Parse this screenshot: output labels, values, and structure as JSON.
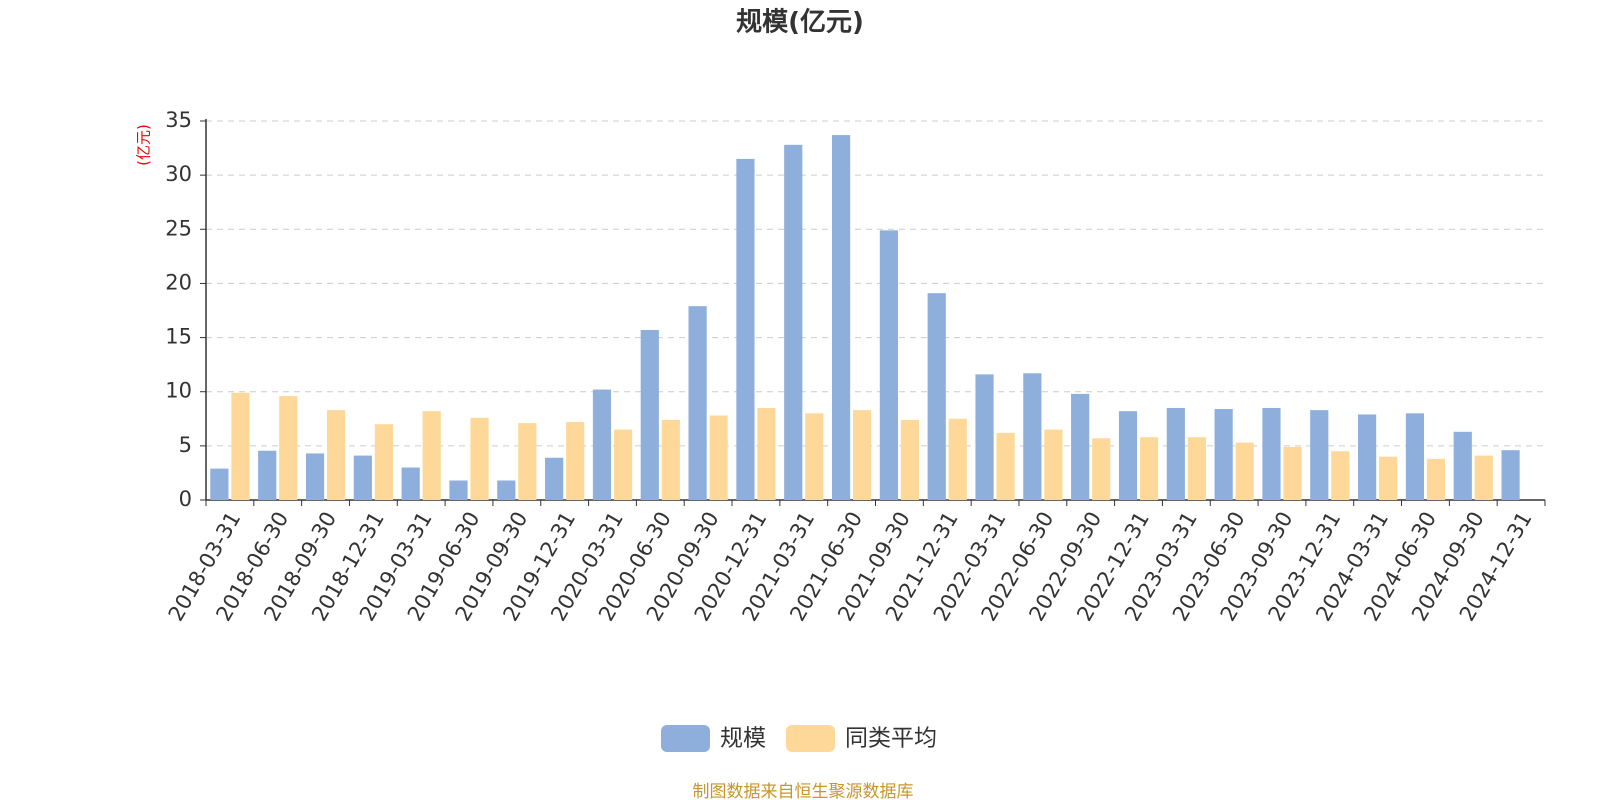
{
  "chart_data": {
    "type": "bar",
    "title": "规模(亿元)",
    "y_label": "(亿元)",
    "source": "制图数据来自恒生聚源数据库",
    "categories": [
      "2018-03-31",
      "2018-06-30",
      "2018-09-30",
      "2018-12-31",
      "2019-03-31",
      "2019-06-30",
      "2019-09-30",
      "2019-12-31",
      "2020-03-31",
      "2020-06-30",
      "2020-09-30",
      "2020-12-31",
      "2021-03-31",
      "2021-06-30",
      "2021-09-30",
      "2021-12-31",
      "2022-03-31",
      "2022-06-30",
      "2022-09-30",
      "2022-12-31",
      "2023-03-31",
      "2023-06-30",
      "2023-09-30",
      "2023-12-31",
      "2024-03-31",
      "2024-06-30",
      "2024-09-30",
      "2024-12-31"
    ],
    "series": [
      {
        "name": "规模",
        "color": "#8eaedb",
        "values": [
          2.9,
          4.55,
          4.3,
          4.1,
          3.0,
          1.8,
          1.8,
          3.9,
          10.2,
          15.7,
          17.9,
          31.5,
          32.8,
          33.7,
          24.9,
          19.1,
          11.6,
          11.7,
          9.8,
          8.2,
          8.5,
          8.4,
          8.5,
          8.3,
          7.9,
          8.0,
          6.3,
          4.6
        ]
      },
      {
        "name": "同类平均",
        "color": "#fdd898",
        "values": [
          9.9,
          9.6,
          8.3,
          7.0,
          8.2,
          7.6,
          7.1,
          7.2,
          6.5,
          7.4,
          7.8,
          8.5,
          8.0,
          8.3,
          7.4,
          7.5,
          6.2,
          6.5,
          5.7,
          5.8,
          5.8,
          5.3,
          4.9,
          4.5,
          4.0,
          3.8,
          4.1,
          null
        ]
      }
    ],
    "ylim": [
      0,
      35
    ],
    "yticks": [
      0,
      5,
      10,
      15,
      20,
      25,
      30,
      35
    ],
    "grid": true
  }
}
